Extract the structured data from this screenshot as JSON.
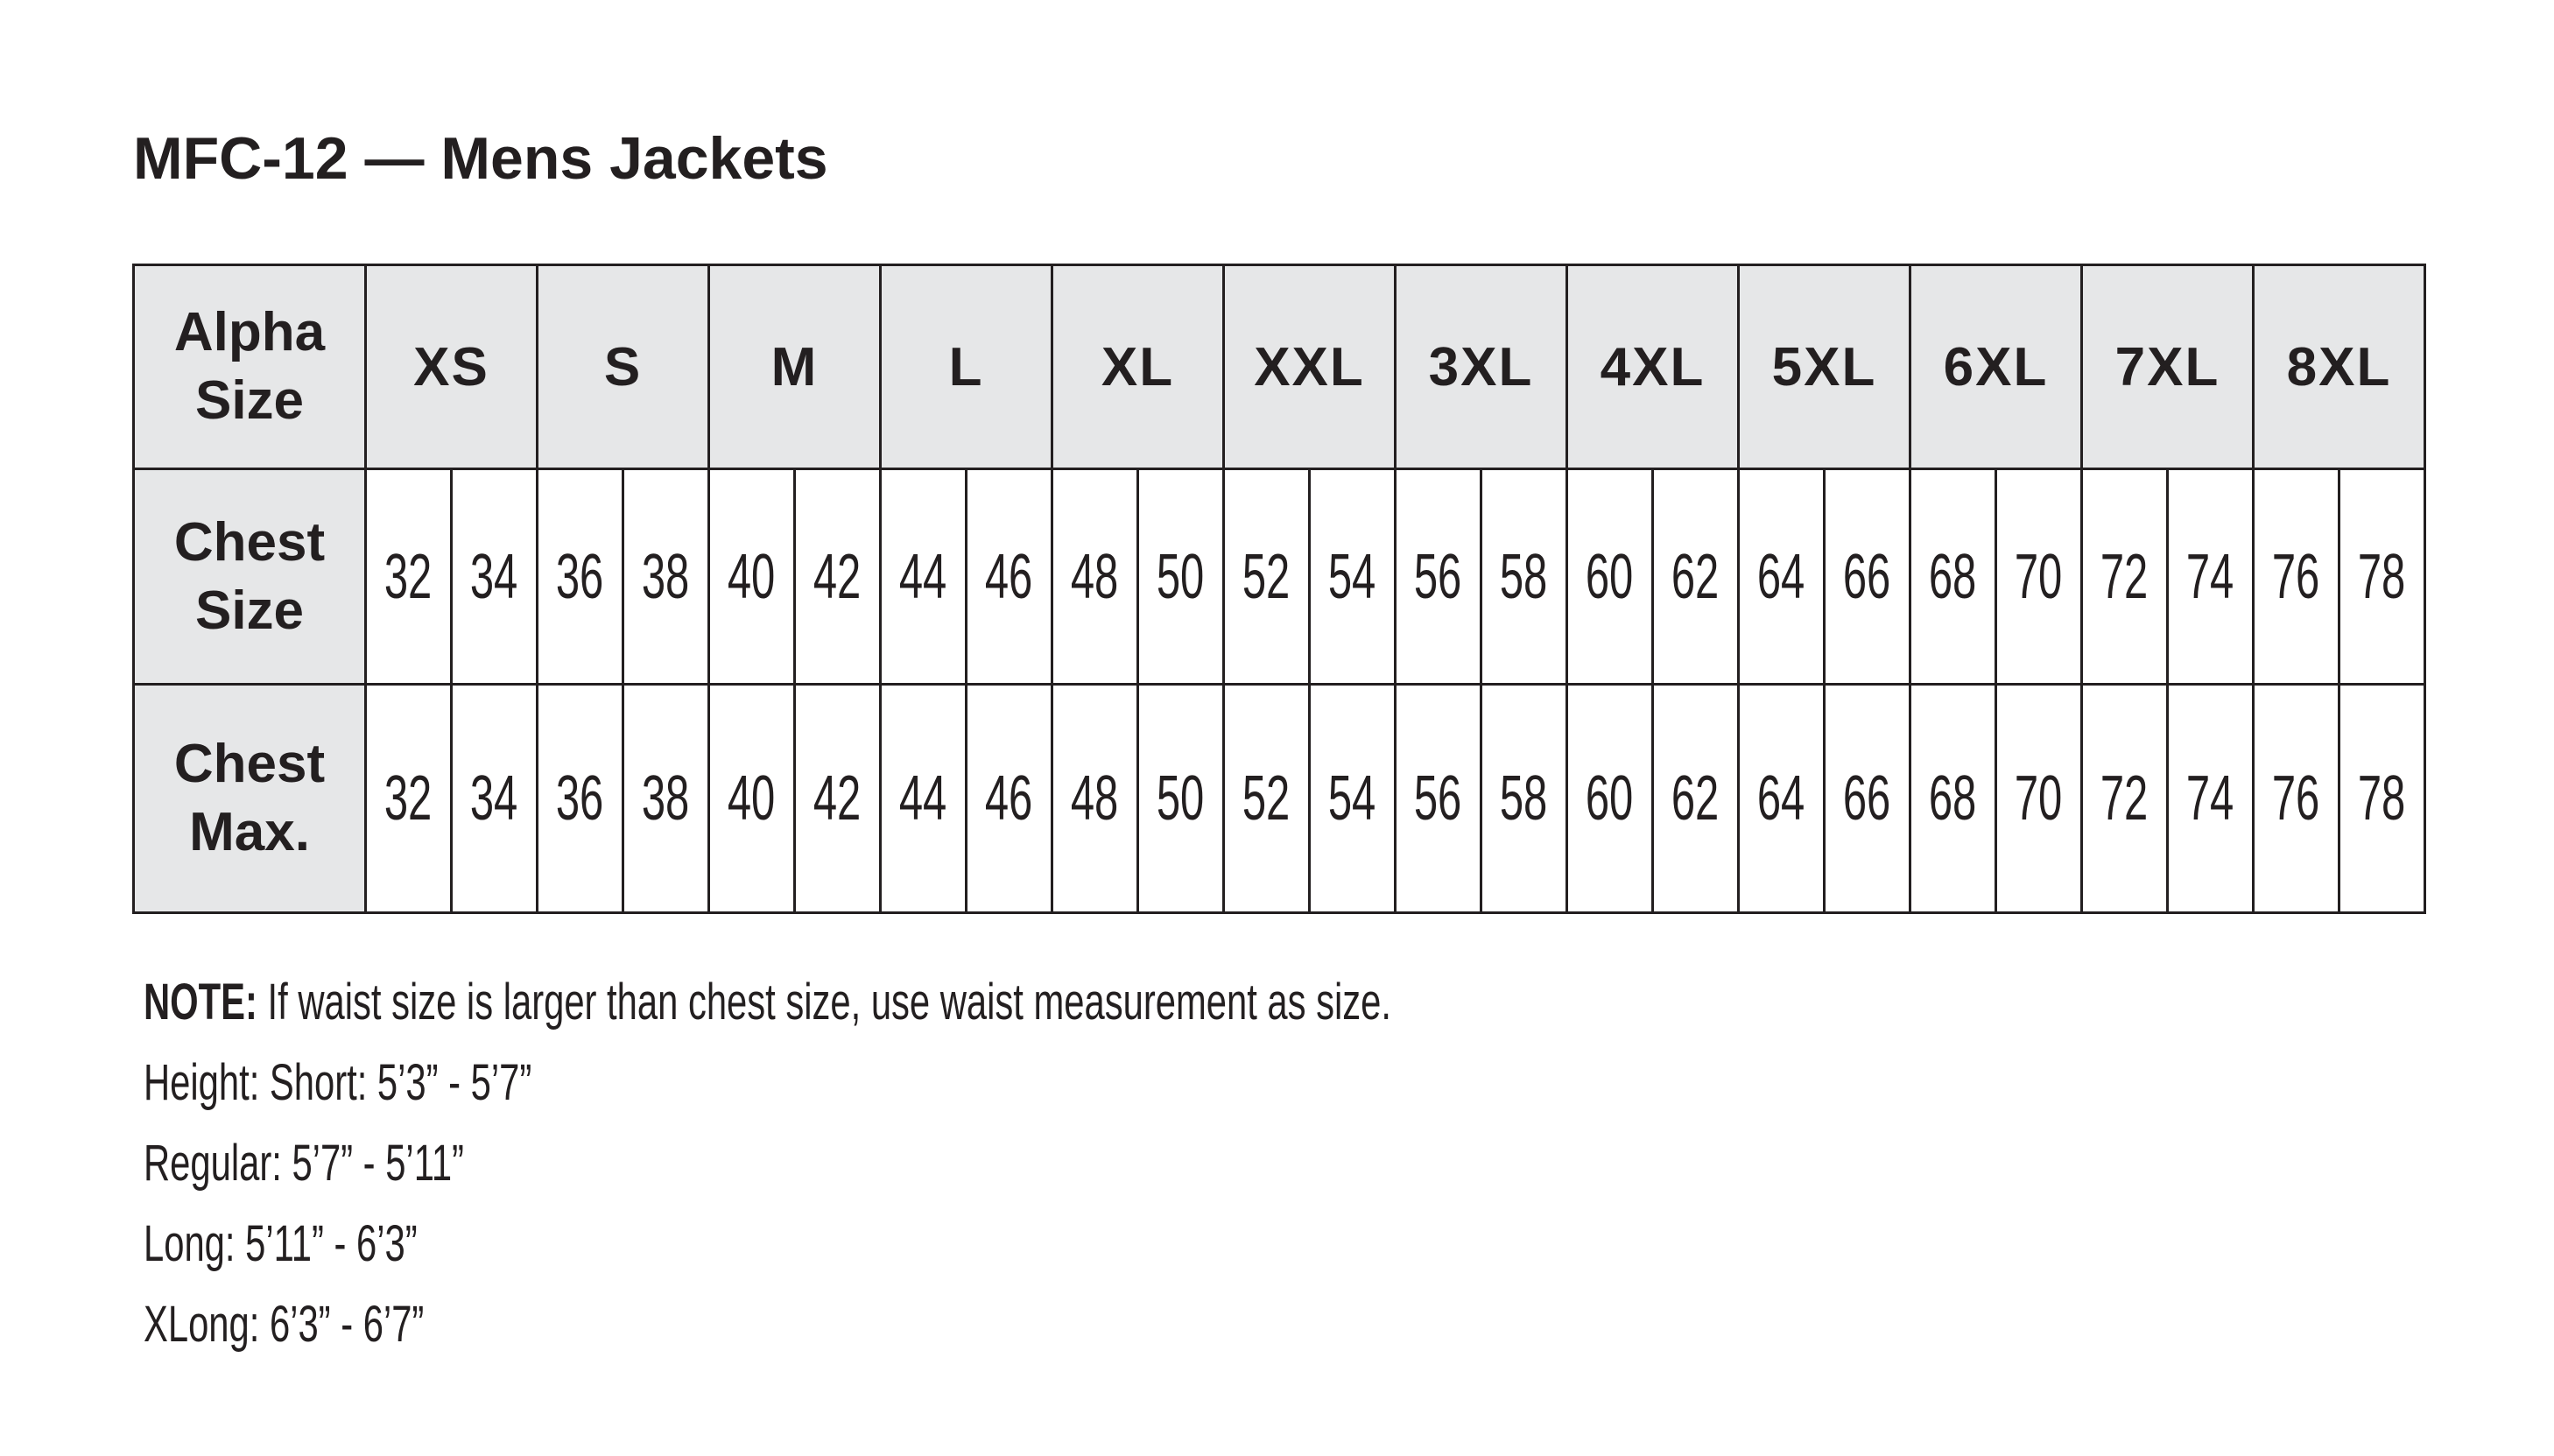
{
  "title": "MFC-12 — Mens Jackets",
  "colors": {
    "header_bg": "#e6e7e8",
    "border": "#231f20",
    "text": "#231f20"
  },
  "table": {
    "row_labels": {
      "alpha": [
        "Alpha",
        "Size"
      ],
      "chest_size": [
        "Chest",
        "Size"
      ],
      "chest_max": [
        "Chest",
        "Max."
      ]
    },
    "alpha_sizes": [
      "XS",
      "S",
      "M",
      "L",
      "XL",
      "XXL",
      "3XL",
      "4XL",
      "5XL",
      "6XL",
      "7XL",
      "8XL"
    ],
    "chest_size": [
      "32",
      "34",
      "36",
      "38",
      "40",
      "42",
      "44",
      "46",
      "48",
      "50",
      "52",
      "54",
      "56",
      "58",
      "60",
      "62",
      "64",
      "66",
      "68",
      "70",
      "72",
      "74",
      "76",
      "78"
    ],
    "chest_max": [
      "32",
      "34",
      "36",
      "38",
      "40",
      "42",
      "44",
      "46",
      "48",
      "50",
      "52",
      "54",
      "56",
      "58",
      "60",
      "62",
      "64",
      "66",
      "68",
      "70",
      "72",
      "74",
      "76",
      "78"
    ]
  },
  "notes": {
    "note_label": "NOTE:",
    "note_text": " If waist size is larger than chest size, use waist measurement as size.",
    "lines": [
      "Height: Short: 5’3” - 5’7”",
      "Regular: 5’7” - 5’11”",
      "Long: 5’11” - 6’3”",
      "XLong: 6’3” - 6’7”"
    ]
  }
}
